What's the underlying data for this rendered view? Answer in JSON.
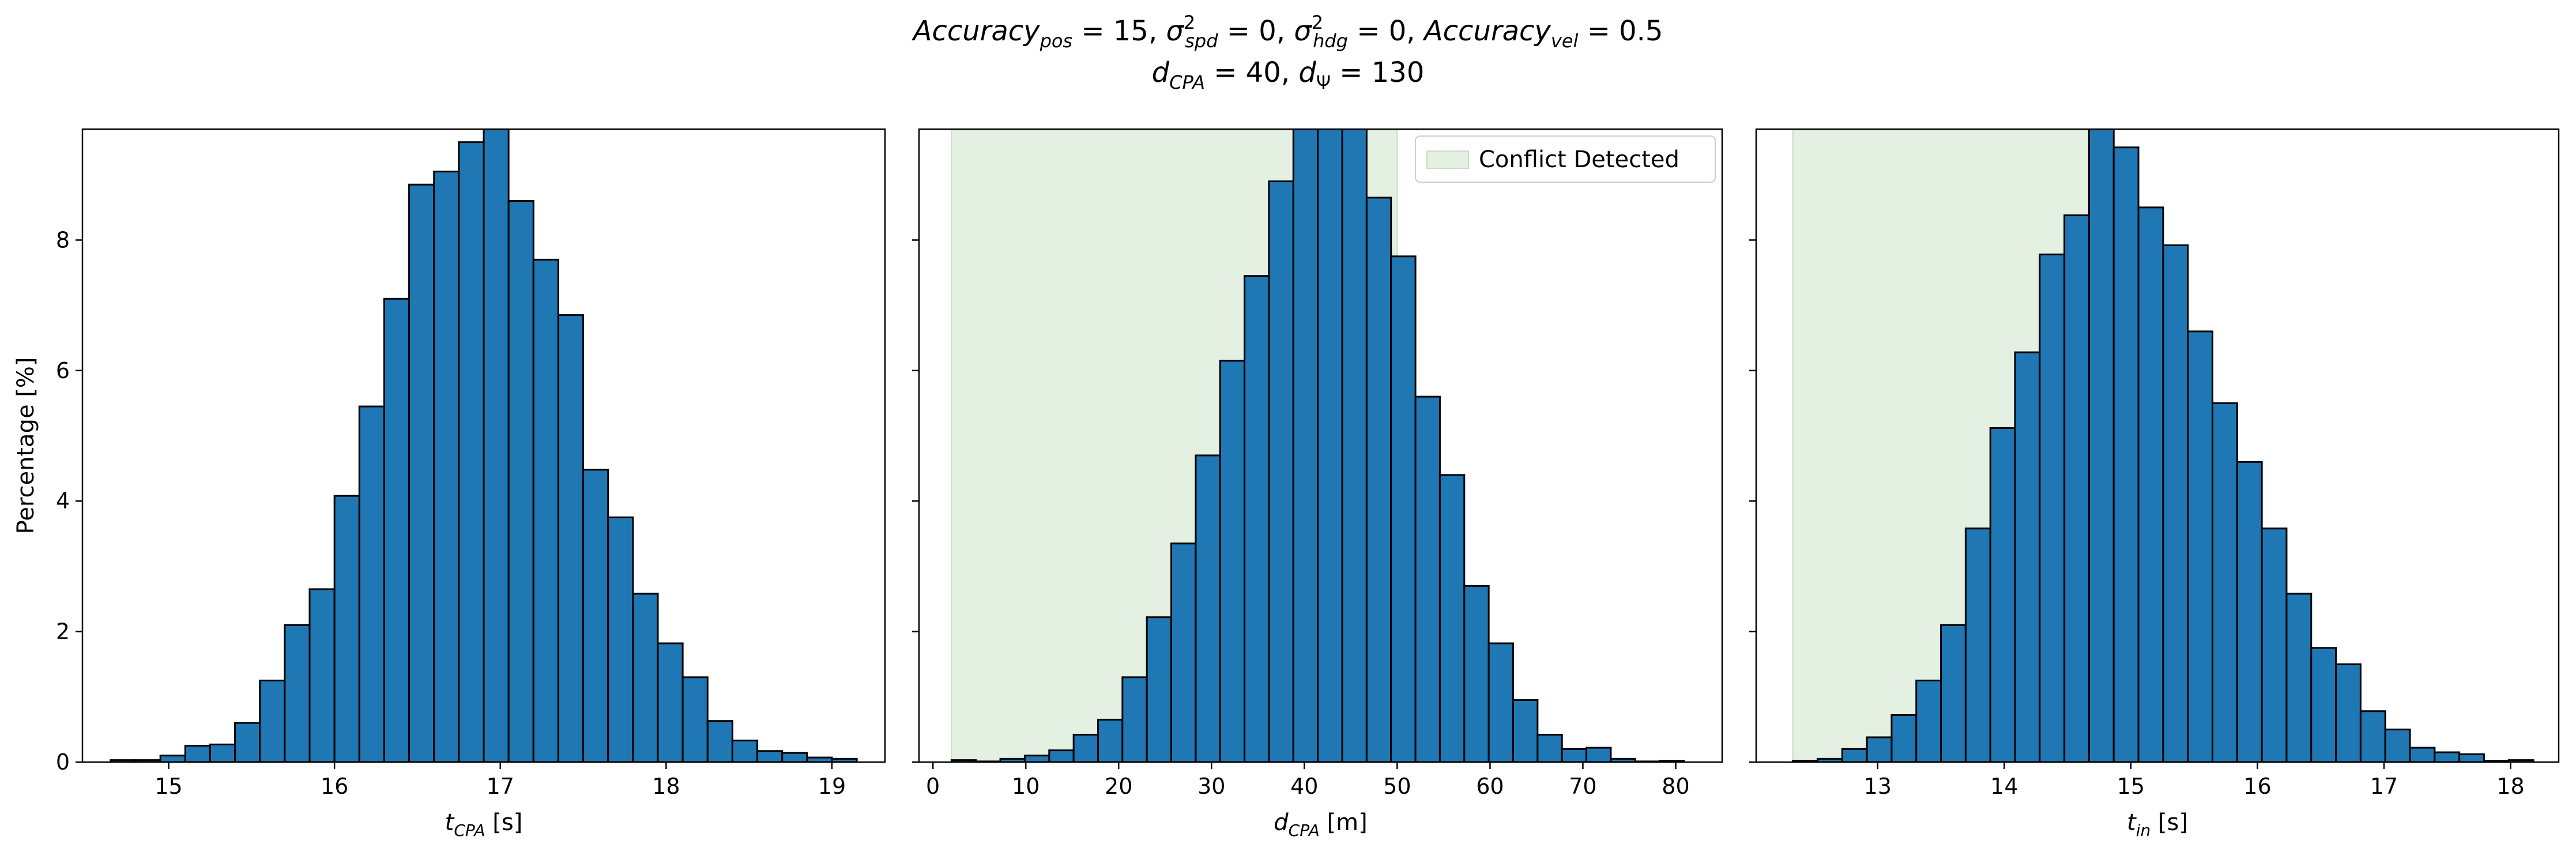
{
  "figure": {
    "title_line1": "Accuracy_pos = 15, σ²_spd = 0, σ²_hdg = 0, Accuracy_vel = 0.5",
    "title_line2": "d_CPA = 40, d_Ψ = 130"
  },
  "colors": {
    "bar": "#1f77b4",
    "edge": "#000000",
    "shade": "#e4f0e2",
    "shade_edge": "#c7dfc2"
  },
  "chart_data": [
    {
      "type": "bar",
      "title": "",
      "xlabel": "t_CPA [s]",
      "ylabel": "Percentage [%]",
      "xlim": [
        14.48,
        19.32
      ],
      "ylim": [
        0,
        9.7
      ],
      "xticks": [
        15,
        16,
        17,
        18,
        19
      ],
      "yticks": [
        0,
        2,
        4,
        6,
        8
      ],
      "bin_start": 14.65,
      "bin_width": 0.15,
      "values": [
        0.03,
        0.03,
        0.1,
        0.25,
        0.27,
        0.6,
        1.25,
        2.1,
        2.65,
        4.08,
        5.45,
        7.1,
        8.85,
        9.05,
        9.5,
        9.7,
        8.6,
        7.7,
        6.85,
        4.48,
        3.75,
        2.58,
        1.82,
        1.3,
        0.63,
        0.33,
        0.17,
        0.14,
        0.07,
        0.05
      ],
      "shade": null,
      "legend": null
    },
    {
      "type": "bar",
      "title": "",
      "xlabel": "d_CPA [m]",
      "ylabel": "",
      "xlim": [
        -1.5,
        85
      ],
      "ylim": [
        0,
        9.7
      ],
      "xticks": [
        0,
        10,
        20,
        30,
        40,
        50,
        60,
        70,
        80
      ],
      "yticks": [
        0,
        2,
        4,
        6,
        8
      ],
      "bin_start": 2.0,
      "bin_width": 2.63,
      "values": [
        0.03,
        0.01,
        0.05,
        0.1,
        0.18,
        0.42,
        0.65,
        1.3,
        2.22,
        3.35,
        4.7,
        6.15,
        7.45,
        8.9,
        10.0,
        10.0,
        10.0,
        8.65,
        7.75,
        5.6,
        4.4,
        2.7,
        1.82,
        0.95,
        0.42,
        0.2,
        0.22,
        0.05,
        0.01,
        0.02
      ],
      "shade": [
        2.0,
        50.0
      ],
      "legend": {
        "label": "Conflict Detected",
        "position": "upper right"
      }
    },
    {
      "type": "bar",
      "title": "",
      "xlabel": "t_in [s]",
      "ylabel": "",
      "xlim": [
        12.04,
        18.38
      ],
      "ylim": [
        0,
        9.7
      ],
      "xticks": [
        13,
        14,
        15,
        16,
        17,
        18
      ],
      "yticks": [
        0,
        2,
        4,
        6,
        8
      ],
      "bin_start": 12.33,
      "bin_width": 0.195,
      "values": [
        0.02,
        0.05,
        0.2,
        0.38,
        0.72,
        1.25,
        2.1,
        3.58,
        5.12,
        6.28,
        7.78,
        8.38,
        9.7,
        9.42,
        8.5,
        7.92,
        6.6,
        5.5,
        4.6,
        3.58,
        2.58,
        1.75,
        1.5,
        0.78,
        0.5,
        0.22,
        0.15,
        0.12,
        0.02,
        0.03
      ],
      "shade": [
        12.33,
        14.85
      ],
      "legend": null
    }
  ]
}
